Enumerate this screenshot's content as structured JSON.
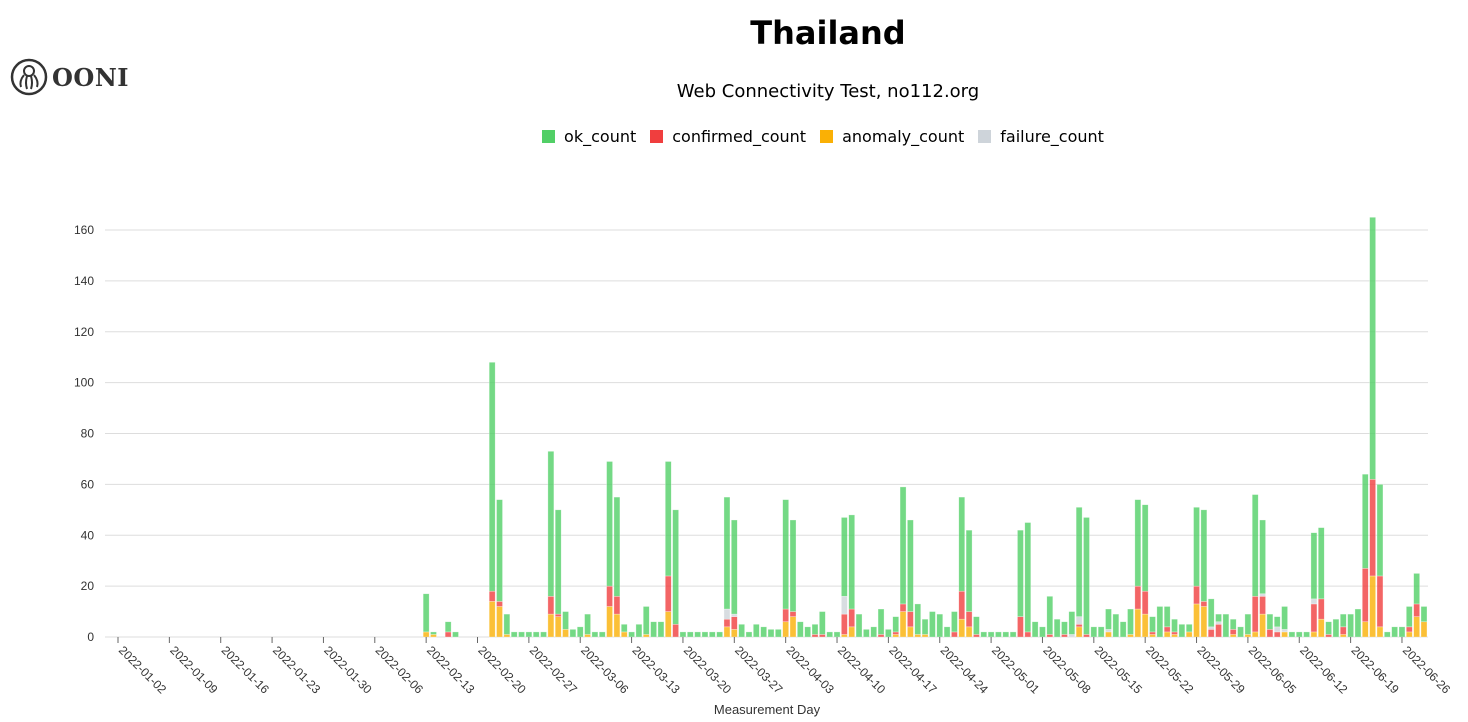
{
  "logo": {
    "text": "OONI",
    "icon": "ooni-octopus-icon"
  },
  "chart_data": {
    "type": "bar",
    "stacked": true,
    "title": "Thailand",
    "subtitle": "Web Connectivity Test, no112.org",
    "xlabel": "Measurement Day",
    "ylabel": "",
    "ylim": [
      0,
      170
    ],
    "y_ticks": [
      0,
      20,
      40,
      60,
      80,
      100,
      120,
      140,
      160
    ],
    "x_range": [
      "2022-01-02",
      "2022-06-29"
    ],
    "x_ticks": [
      "2022-01-02",
      "2022-01-09",
      "2022-01-16",
      "2022-01-23",
      "2022-01-30",
      "2022-02-06",
      "2022-02-13",
      "2022-02-20",
      "2022-02-27",
      "2022-03-06",
      "2022-03-13",
      "2022-03-20",
      "2022-03-27",
      "2022-04-03",
      "2022-04-10",
      "2022-04-17",
      "2022-04-24",
      "2022-05-01",
      "2022-05-08",
      "2022-05-15",
      "2022-05-22",
      "2022-05-29",
      "2022-06-05",
      "2022-06-12",
      "2022-06-19",
      "2022-06-26"
    ],
    "grid": true,
    "legend_position": "top",
    "x": [
      "2022-02-13",
      "2022-02-14",
      "2022-02-15",
      "2022-02-16",
      "2022-02-17",
      "2022-02-18",
      "2022-02-19",
      "2022-02-20",
      "2022-02-21",
      "2022-02-22",
      "2022-02-23",
      "2022-02-24",
      "2022-02-25",
      "2022-02-26",
      "2022-02-27",
      "2022-02-28",
      "2022-03-01",
      "2022-03-02",
      "2022-03-03",
      "2022-03-04",
      "2022-03-05",
      "2022-03-06",
      "2022-03-07",
      "2022-03-08",
      "2022-03-09",
      "2022-03-10",
      "2022-03-11",
      "2022-03-12",
      "2022-03-13",
      "2022-03-14",
      "2022-03-15",
      "2022-03-16",
      "2022-03-17",
      "2022-03-18",
      "2022-03-19",
      "2022-03-20",
      "2022-03-21",
      "2022-03-22",
      "2022-03-23",
      "2022-03-24",
      "2022-03-25",
      "2022-03-26",
      "2022-03-27",
      "2022-03-28",
      "2022-03-29",
      "2022-03-30",
      "2022-03-31",
      "2022-04-01",
      "2022-04-02",
      "2022-04-03",
      "2022-04-04",
      "2022-04-05",
      "2022-04-06",
      "2022-04-07",
      "2022-04-08",
      "2022-04-09",
      "2022-04-10",
      "2022-04-11",
      "2022-04-12",
      "2022-04-13",
      "2022-04-14",
      "2022-04-15",
      "2022-04-16",
      "2022-04-17",
      "2022-04-18",
      "2022-04-19",
      "2022-04-20",
      "2022-04-21",
      "2022-04-22",
      "2022-04-23",
      "2022-04-24",
      "2022-04-25",
      "2022-04-26",
      "2022-04-27",
      "2022-04-28",
      "2022-04-29",
      "2022-04-30",
      "2022-05-01",
      "2022-05-02",
      "2022-05-03",
      "2022-05-04",
      "2022-05-05",
      "2022-05-06",
      "2022-05-07",
      "2022-05-08",
      "2022-05-09",
      "2022-05-10",
      "2022-05-11",
      "2022-05-12",
      "2022-05-13",
      "2022-05-14",
      "2022-05-15",
      "2022-05-16",
      "2022-05-17",
      "2022-05-18",
      "2022-05-19",
      "2022-05-20",
      "2022-05-21",
      "2022-05-22",
      "2022-05-23",
      "2022-05-24",
      "2022-05-25",
      "2022-05-26",
      "2022-05-27",
      "2022-05-28",
      "2022-05-29",
      "2022-05-30",
      "2022-05-31",
      "2022-06-01",
      "2022-06-02",
      "2022-06-03",
      "2022-06-04",
      "2022-06-05",
      "2022-06-06",
      "2022-06-07",
      "2022-06-08",
      "2022-06-09",
      "2022-06-10",
      "2022-06-11",
      "2022-06-12",
      "2022-06-13",
      "2022-06-14",
      "2022-06-15",
      "2022-06-16",
      "2022-06-17",
      "2022-06-18",
      "2022-06-19",
      "2022-06-20",
      "2022-06-21",
      "2022-06-22",
      "2022-06-23",
      "2022-06-24",
      "2022-06-25",
      "2022-06-26",
      "2022-06-27",
      "2022-06-28",
      "2022-06-29"
    ],
    "series": [
      {
        "name": "anomaly_count",
        "color": "#fab005",
        "values": [
          2,
          1,
          0,
          0,
          0,
          0,
          0,
          0,
          0,
          14,
          12,
          1,
          0,
          0,
          0,
          0,
          0,
          9,
          8,
          3,
          0,
          0,
          1,
          0,
          0,
          12,
          9,
          2,
          0,
          0,
          1,
          0,
          0,
          10,
          0,
          0,
          0,
          0,
          0,
          0,
          0,
          4,
          3,
          0,
          0,
          0,
          0,
          0,
          0,
          6,
          8,
          0,
          0,
          0,
          0,
          0,
          0,
          1,
          4,
          0,
          0,
          0,
          0,
          0,
          1,
          10,
          4,
          1,
          1,
          0,
          0,
          0,
          0,
          7,
          4,
          0,
          0,
          0,
          0,
          0,
          0,
          0,
          0,
          0,
          0,
          0,
          0,
          0,
          0,
          4,
          0,
          0,
          0,
          2,
          0,
          0,
          1,
          11,
          9,
          1,
          0,
          2,
          1,
          0,
          2,
          13,
          12,
          0,
          0,
          0,
          1,
          0,
          1,
          2,
          9,
          0,
          0,
          2,
          0,
          0,
          0,
          2,
          7,
          0,
          0,
          1,
          0,
          0,
          6,
          24,
          4,
          0,
          0,
          0,
          2,
          8,
          6
        ]
      },
      {
        "name": "confirmed_count",
        "color": "#f03e3e",
        "values": [
          0,
          0,
          0,
          2,
          0,
          0,
          0,
          0,
          0,
          4,
          2,
          0,
          0,
          0,
          0,
          0,
          0,
          7,
          1,
          0,
          0,
          0,
          0,
          0,
          0,
          8,
          7,
          0,
          0,
          0,
          0,
          0,
          0,
          14,
          5,
          0,
          0,
          0,
          0,
          0,
          0,
          3,
          5,
          0,
          0,
          0,
          0,
          0,
          0,
          5,
          2,
          0,
          0,
          1,
          1,
          0,
          0,
          8,
          7,
          0,
          0,
          0,
          1,
          0,
          1,
          3,
          6,
          0,
          0,
          0,
          0,
          0,
          2,
          11,
          6,
          1,
          0,
          0,
          0,
          0,
          0,
          8,
          2,
          0,
          0,
          1,
          0,
          1,
          0,
          1,
          1,
          0,
          0,
          0,
          0,
          0,
          0,
          9,
          9,
          1,
          0,
          2,
          1,
          0,
          0,
          7,
          2,
          3,
          5,
          0,
          2,
          0,
          0,
          14,
          7,
          3,
          2,
          0,
          0,
          0,
          0,
          11,
          8,
          1,
          0,
          3,
          0,
          0,
          21,
          38,
          20,
          0,
          0,
          0,
          2,
          5,
          0
        ]
      },
      {
        "name": "failure_count",
        "color": "#ced4da",
        "values": [
          0,
          0,
          0,
          0,
          0,
          0,
          0,
          0,
          0,
          0,
          0,
          0,
          0,
          0,
          0,
          0,
          0,
          0,
          0,
          0,
          0,
          0,
          0,
          0,
          0,
          0,
          0,
          0,
          0,
          0,
          0,
          0,
          0,
          0,
          0,
          0,
          0,
          0,
          0,
          0,
          0,
          4,
          1,
          0,
          0,
          0,
          0,
          0,
          0,
          0,
          0,
          0,
          0,
          0,
          0,
          0,
          0,
          7,
          0,
          0,
          0,
          0,
          0,
          0,
          0,
          0,
          0,
          0,
          0,
          0,
          0,
          0,
          0,
          0,
          0,
          0,
          0,
          0,
          0,
          0,
          0,
          0,
          0,
          0,
          0,
          0,
          0,
          0,
          1,
          3,
          0,
          0,
          0,
          1,
          0,
          0,
          0,
          0,
          0,
          0,
          0,
          0,
          0,
          0,
          0,
          0,
          0,
          1,
          1,
          0,
          0,
          0,
          0,
          0,
          1,
          0,
          2,
          1,
          0,
          0,
          0,
          2,
          0,
          0,
          0,
          0,
          0,
          0,
          0,
          0,
          0,
          0,
          0,
          0,
          0,
          0,
          0
        ]
      },
      {
        "name": "ok_count",
        "color": "#51cf66",
        "values": [
          15,
          1,
          0,
          4,
          2,
          0,
          0,
          0,
          0,
          90,
          40,
          8,
          2,
          2,
          2,
          2,
          2,
          57,
          41,
          7,
          3,
          4,
          8,
          2,
          2,
          49,
          39,
          3,
          2,
          5,
          11,
          6,
          6,
          45,
          45,
          2,
          2,
          2,
          2,
          2,
          2,
          44,
          37,
          5,
          2,
          5,
          4,
          3,
          3,
          43,
          36,
          6,
          4,
          4,
          9,
          2,
          2,
          31,
          37,
          9,
          3,
          4,
          10,
          3,
          6,
          46,
          36,
          12,
          6,
          10,
          9,
          4,
          8,
          37,
          32,
          7,
          2,
          2,
          2,
          2,
          2,
          34,
          43,
          6,
          4,
          15,
          7,
          5,
          9,
          43,
          46,
          4,
          4,
          8,
          9,
          6,
          10,
          34,
          34,
          6,
          12,
          8,
          5,
          5,
          3,
          31,
          36,
          11,
          3,
          9,
          4,
          4,
          8,
          40,
          29,
          6,
          4,
          9,
          2,
          2,
          2,
          26,
          28,
          5,
          7,
          5,
          9,
          11,
          37,
          103,
          36,
          2,
          4,
          4,
          8,
          12,
          6
        ]
      }
    ],
    "legend": [
      "ok_count",
      "confirmed_count",
      "anomaly_count",
      "failure_count"
    ]
  }
}
